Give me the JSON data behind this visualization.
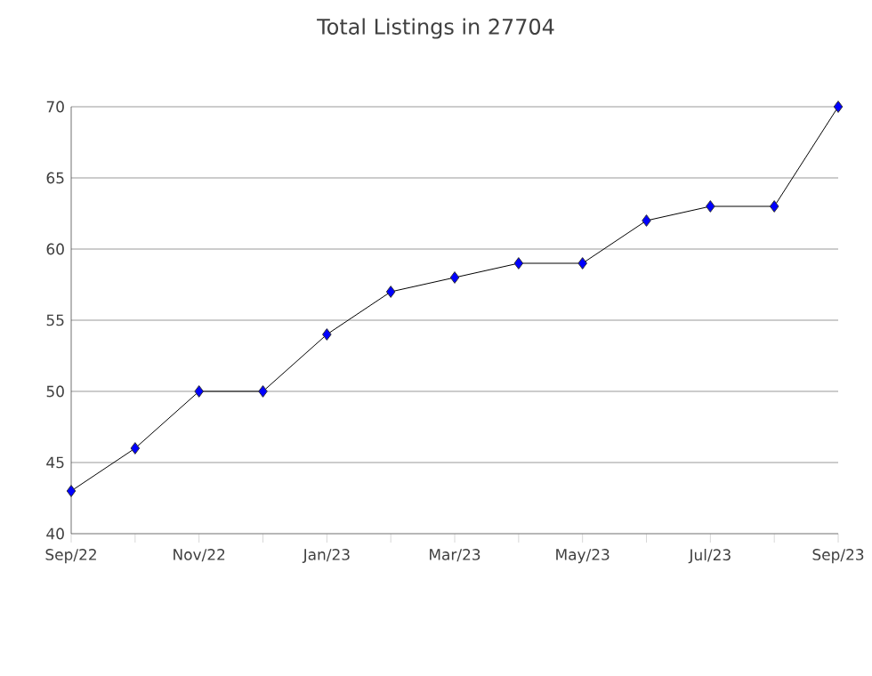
{
  "chart_data": {
    "type": "line",
    "title": "Total Listings in 27704",
    "categories": [
      "Sep/22",
      null,
      "Nov/22",
      null,
      "Jan/23",
      null,
      "Mar/23",
      null,
      "May/23",
      null,
      "Jul/23",
      null,
      "Sep/23"
    ],
    "values": [
      43,
      46,
      50,
      50,
      54,
      57,
      58,
      59,
      59,
      62,
      63,
      63,
      70
    ],
    "color": "#0000ff",
    "marker": "diamond",
    "ylim": [
      40,
      70
    ],
    "yticks": [
      40,
      45,
      50,
      55,
      60,
      65,
      70
    ],
    "grid": "y"
  }
}
